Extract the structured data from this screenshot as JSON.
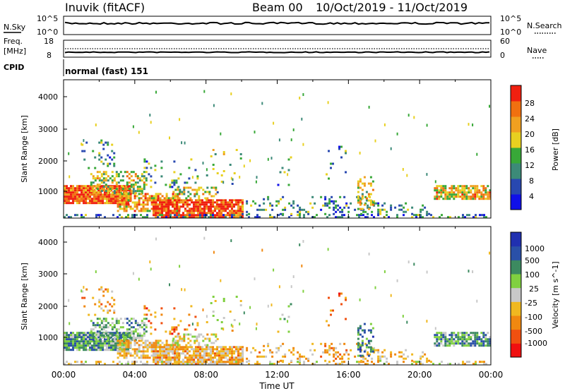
{
  "header": {
    "title": "Inuvik (fitACF)",
    "beam": "Beam 00",
    "date_range": "10/Oct/2019 - 11/Oct/2019"
  },
  "noise_panel": {
    "left_label": "N.Sky",
    "left_ticks": [
      "10^5",
      "10^0"
    ],
    "right_label": "N.Search",
    "right_ticks": [
      "10^5",
      "10^0"
    ]
  },
  "freq_panel": {
    "left_label_1": "Freq.",
    "left_label_2": "[MHz]",
    "left_ticks": [
      "18",
      "8"
    ],
    "right_label": "Nave",
    "right_ticks": [
      "60",
      "0"
    ]
  },
  "cpid_panel": {
    "label": "CPID",
    "text": "normal (fast) 151"
  },
  "colors": {
    "power_scale": [
      "#1010e8",
      "#2848b0",
      "#3c8a78",
      "#38a838",
      "#e8d020",
      "#f0a020",
      "#f07010",
      "#f02010"
    ],
    "velocity_scale": [
      "#f01010",
      "#f05010",
      "#f08810",
      "#f0b820",
      "#c8c8c8",
      "#80d040",
      "#3c8a60",
      "#2a50a8",
      "#2030b0"
    ]
  },
  "chart_data": [
    {
      "type": "heatmap",
      "name": "power",
      "ylabel": "Slant Range [km]",
      "yticks": [
        "4000",
        "3000",
        "2000",
        "1000"
      ],
      "ylim": [
        200,
        4600
      ],
      "xlim": [
        0,
        24
      ],
      "colorbar_label": "Power [dB]",
      "colorbar_ticks": [
        "28",
        "24",
        "20",
        "16",
        "12",
        "8",
        "4"
      ],
      "clim": [
        0,
        32
      ]
    },
    {
      "type": "heatmap",
      "name": "velocity",
      "ylabel": "Slant Range [km]",
      "yticks": [
        "4000",
        "3000",
        "2000",
        "1000"
      ],
      "ylim": [
        200,
        4600
      ],
      "xlim": [
        0,
        24
      ],
      "colorbar_label": "Velocity [m s^-1]",
      "colorbar_ticks": [
        "1000",
        "500",
        "100",
        "25",
        "-25",
        "-100",
        "-500",
        "-1000"
      ],
      "xlabel": "Time UT",
      "xticks": [
        "00:00",
        "04:00",
        "08:00",
        "12:00",
        "16:00",
        "20:00",
        "00:00"
      ]
    }
  ]
}
